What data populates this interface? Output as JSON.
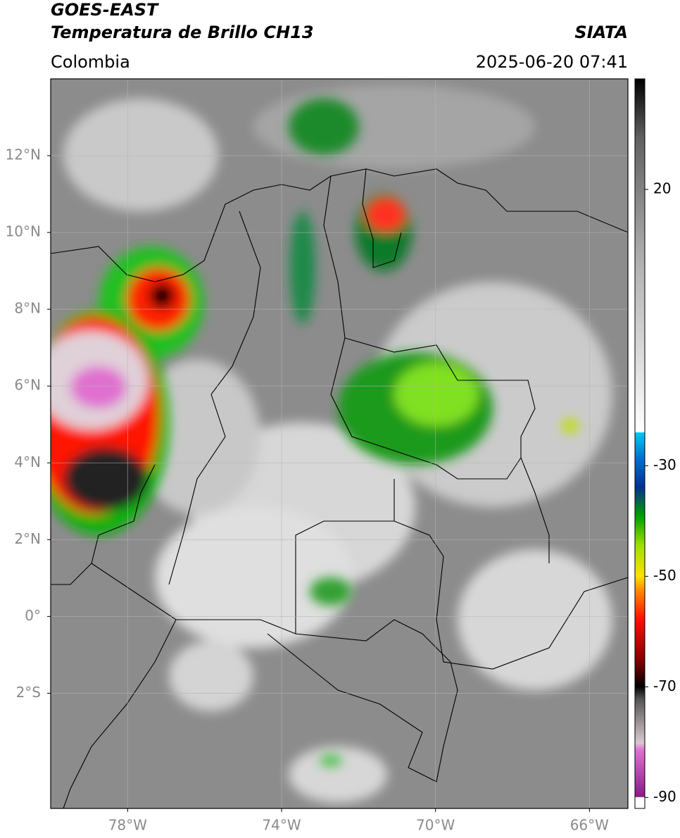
{
  "header": {
    "satellite": "GOES-EAST",
    "product": "Temperatura de Brillo CH13",
    "source": "SIATA",
    "region": "Colombia",
    "datetime": "2025-06-20 07:41"
  },
  "map": {
    "lonlim": [
      -80,
      -65
    ],
    "latlim": [
      -5,
      14
    ],
    "lonticks": [
      {
        "value": -78,
        "label": "78°W"
      },
      {
        "value": -74,
        "label": "74°W"
      },
      {
        "value": -70,
        "label": "70°W"
      },
      {
        "value": -66,
        "label": "66°W"
      }
    ],
    "latticks": [
      {
        "value": 12,
        "label": "12°N"
      },
      {
        "value": 10,
        "label": "10°N"
      },
      {
        "value": 8,
        "label": "8°N"
      },
      {
        "value": 6,
        "label": "6°N"
      },
      {
        "value": 4,
        "label": "4°N"
      },
      {
        "value": 2,
        "label": "2°N"
      },
      {
        "value": 0,
        "label": "0°"
      },
      {
        "value": -2,
        "label": "2°S"
      }
    ]
  },
  "colorbar": {
    "lim": [
      -92,
      40
    ],
    "ticks": [
      20,
      -30,
      -50,
      -70,
      -90
    ]
  }
}
